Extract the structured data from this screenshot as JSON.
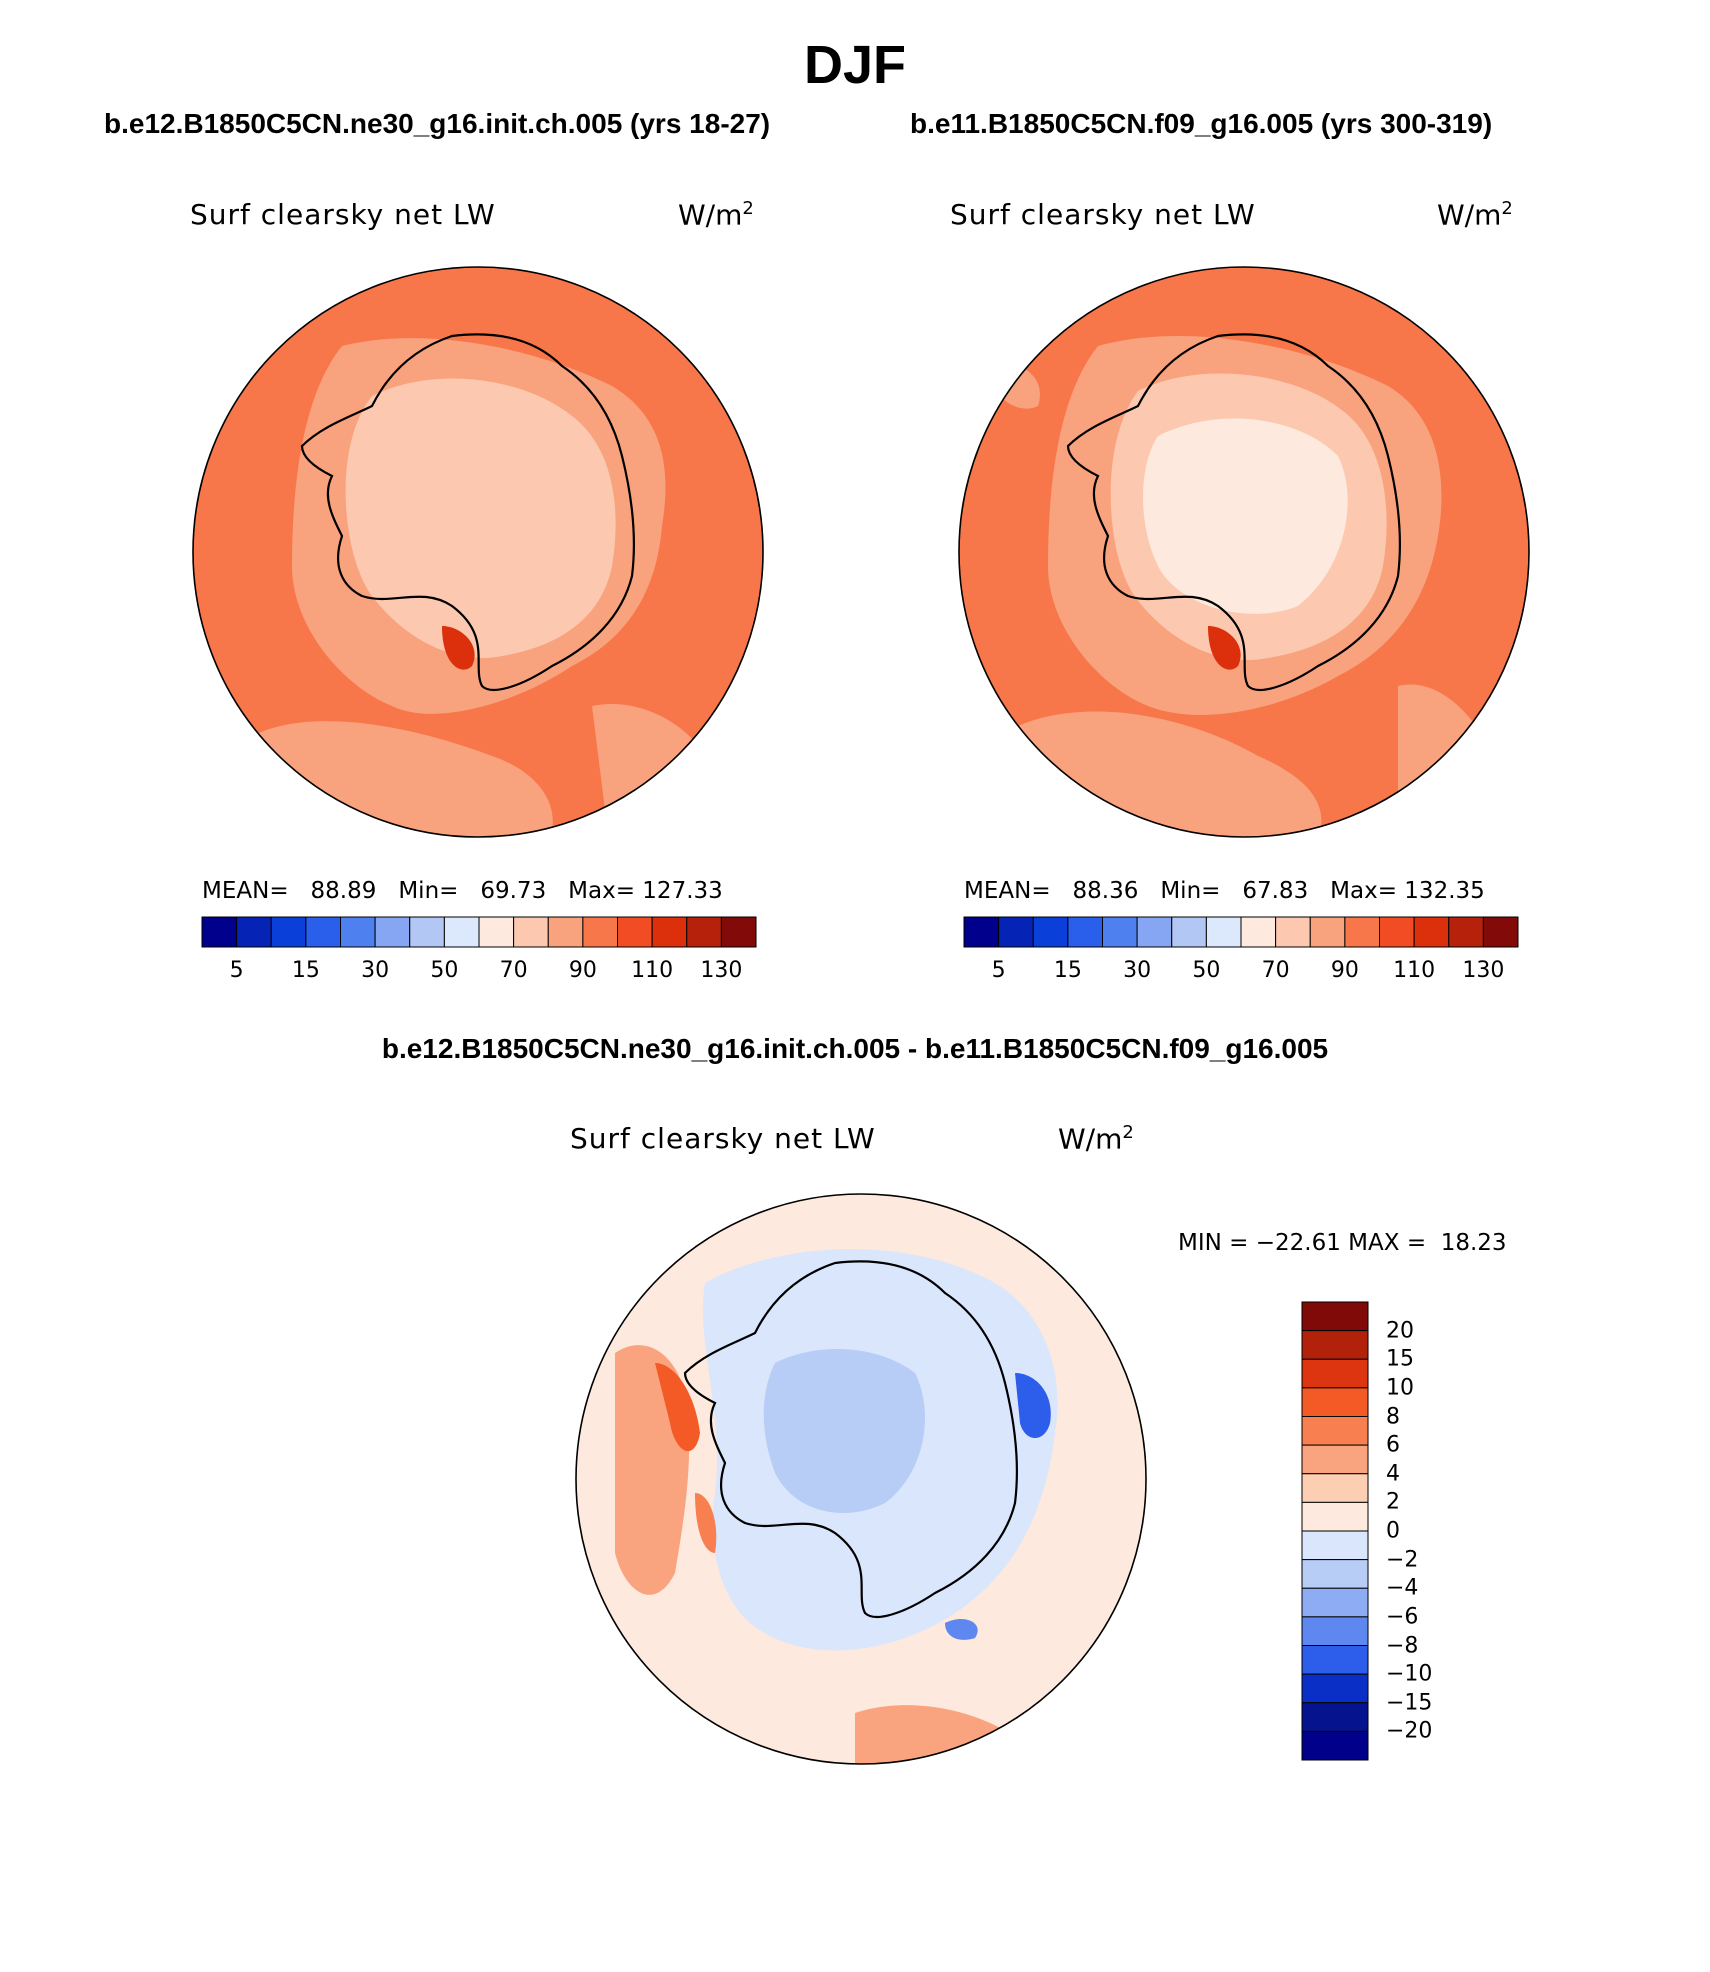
{
  "figure": {
    "season": "DJF",
    "panel_left_title": "b.e12.B1850C5CN.ne30_g16.init.ch.005 (yrs 18-27)",
    "panel_right_title": "b.e11.B1850C5CN.f09_g16.005 (yrs 300-319)",
    "diff_title": "b.e12.B1850C5CN.ne30_g16.init.ch.005 - b.e11.B1850C5CN.f09_g16.005",
    "variable": "Surf clearsky net LW",
    "units_base": "W/m",
    "units_exp": "2"
  },
  "chart_data": [
    {
      "type": "heatmap",
      "panel": "left",
      "stats": {
        "mean_label": "MEAN=",
        "mean": "88.89",
        "min_label": "Min=",
        "min": "69.73",
        "max_label": "Max=",
        "max": "127.33"
      },
      "levels": [
        "5",
        "15",
        "30",
        "50",
        "70",
        "90",
        "110",
        "130"
      ],
      "colors": [
        "#00008c",
        "#0524b5",
        "#0a3fd9",
        "#2a5fec",
        "#4f80f0",
        "#86a6f3",
        "#b3c7f5",
        "#dce8fb",
        "#fde9dd",
        "#fcc9b0",
        "#f9a27e",
        "#f7774a",
        "#f24c25",
        "#dc2f0c",
        "#b5210a",
        "#820a08"
      ]
    },
    {
      "type": "heatmap",
      "panel": "right",
      "stats": {
        "mean_label": "MEAN=",
        "mean": "88.36",
        "min_label": "Min=",
        "min": "67.83",
        "max_label": "Max=",
        "max": "132.35"
      },
      "levels": [
        "5",
        "15",
        "30",
        "50",
        "70",
        "90",
        "110",
        "130"
      ],
      "colors": [
        "#00008c",
        "#0524b5",
        "#0a3fd9",
        "#2a5fec",
        "#4f80f0",
        "#86a6f3",
        "#b3c7f5",
        "#dce8fb",
        "#fde9dd",
        "#fcc9b0",
        "#f9a27e",
        "#f7774a",
        "#f24c25",
        "#dc2f0c",
        "#b5210a",
        "#820a08"
      ]
    },
    {
      "type": "heatmap",
      "panel": "difference",
      "stats": {
        "min_label": "MIN =",
        "min": "−22.61",
        "max_label": "MAX =",
        "max": "18.23"
      },
      "levels": [
        "20",
        "15",
        "10",
        "8",
        "6",
        "4",
        "2",
        "0",
        "−2",
        "−4",
        "−6",
        "−8",
        "−10",
        "−15",
        "−20"
      ],
      "colors": [
        "#7f0a08",
        "#b2210a",
        "#dc3510",
        "#f35a25",
        "#f77f50",
        "#faa47f",
        "#fcceb2",
        "#fde9dd",
        "#d9e6fb",
        "#b8cdf6",
        "#8eacf4",
        "#5e88f0",
        "#2d5deb",
        "#0a2fc6",
        "#06138f",
        "#00008a"
      ]
    }
  ]
}
